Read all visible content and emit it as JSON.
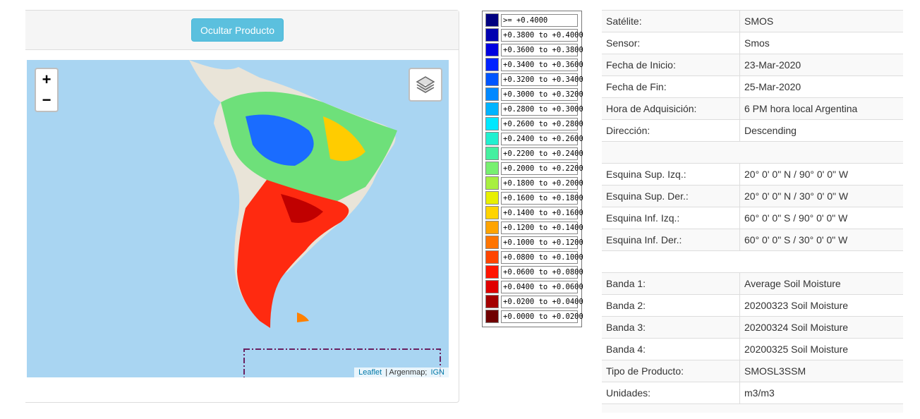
{
  "panel": {
    "button": "Ocultar Producto",
    "map": {
      "zoom_in": "+",
      "zoom_out": "−",
      "attribution": [
        "Leaflet",
        "| Argenmap;",
        "IGN"
      ]
    }
  },
  "legend": [
    {
      "label": ">= +0.4000",
      "color": "#000080"
    },
    {
      "label": "+0.3800 to +0.4000",
      "color": "#0000b0"
    },
    {
      "label": "+0.3600 to +0.3800",
      "color": "#0000e0"
    },
    {
      "label": "+0.3400 to +0.3600",
      "color": "#0022ff"
    },
    {
      "label": "+0.3200 to +0.3400",
      "color": "#0055ff"
    },
    {
      "label": "+0.3000 to +0.3200",
      "color": "#0088ff"
    },
    {
      "label": "+0.2800 to +0.3000",
      "color": "#00b4ff"
    },
    {
      "label": "+0.2600 to +0.2800",
      "color": "#00e8ff"
    },
    {
      "label": "+0.2400 to +0.2600",
      "color": "#22f0d0"
    },
    {
      "label": "+0.2200 to +0.2400",
      "color": "#44f0a0"
    },
    {
      "label": "+0.2000 to +0.2200",
      "color": "#77f070"
    },
    {
      "label": "+0.1800 to +0.2000",
      "color": "#a8f040"
    },
    {
      "label": "+0.1600 to +0.1800",
      "color": "#e8f000"
    },
    {
      "label": "+0.1400 to +0.1600",
      "color": "#ffd400"
    },
    {
      "label": "+0.1200 to +0.1400",
      "color": "#ffa400"
    },
    {
      "label": "+0.1000 to +0.1200",
      "color": "#ff7400"
    },
    {
      "label": "+0.0800 to +0.1000",
      "color": "#ff4400"
    },
    {
      "label": "+0.0600 to +0.0800",
      "color": "#ff1400"
    },
    {
      "label": "+0.0400 to +0.0600",
      "color": "#e00000"
    },
    {
      "label": "+0.0200 to +0.0400",
      "color": "#a40000"
    },
    {
      "label": "+0.0000 to +0.0200",
      "color": "#700000"
    }
  ],
  "table": {
    "sections": [
      [
        [
          "Satélite:",
          "SMOS"
        ],
        [
          "Sensor:",
          "Smos"
        ],
        [
          "Fecha de Inicio:",
          "23-Mar-2020"
        ],
        [
          "Fecha de Fin:",
          "25-Mar-2020"
        ],
        [
          "Hora de Adquisición:",
          "6 PM hora local Argentina"
        ],
        [
          "Dirección:",
          "Descending"
        ]
      ],
      [
        [
          "Esquina Sup. Izq.:",
          "20° 0' 0\" N / 90° 0' 0\" W"
        ],
        [
          "Esquina Sup. Der.:",
          "20° 0' 0\" N / 30° 0' 0\" W"
        ],
        [
          "Esquina Inf. Izq.:",
          "60° 0' 0\" S / 90° 0' 0\" W"
        ],
        [
          "Esquina Inf. Der.:",
          "60° 0' 0\" S / 30° 0' 0\" W"
        ]
      ],
      [
        [
          "Banda 1:",
          "Average Soil Moisture"
        ],
        [
          "Banda 2:",
          "20200323 Soil Moisture"
        ],
        [
          "Banda 3:",
          "20200324 Soil Moisture"
        ],
        [
          "Banda 4:",
          "20200325 Soil Moisture"
        ],
        [
          "Tipo de Producto:",
          "SMOSL3SSM"
        ],
        [
          "Unidades:",
          "m3/m3"
        ]
      ]
    ]
  }
}
